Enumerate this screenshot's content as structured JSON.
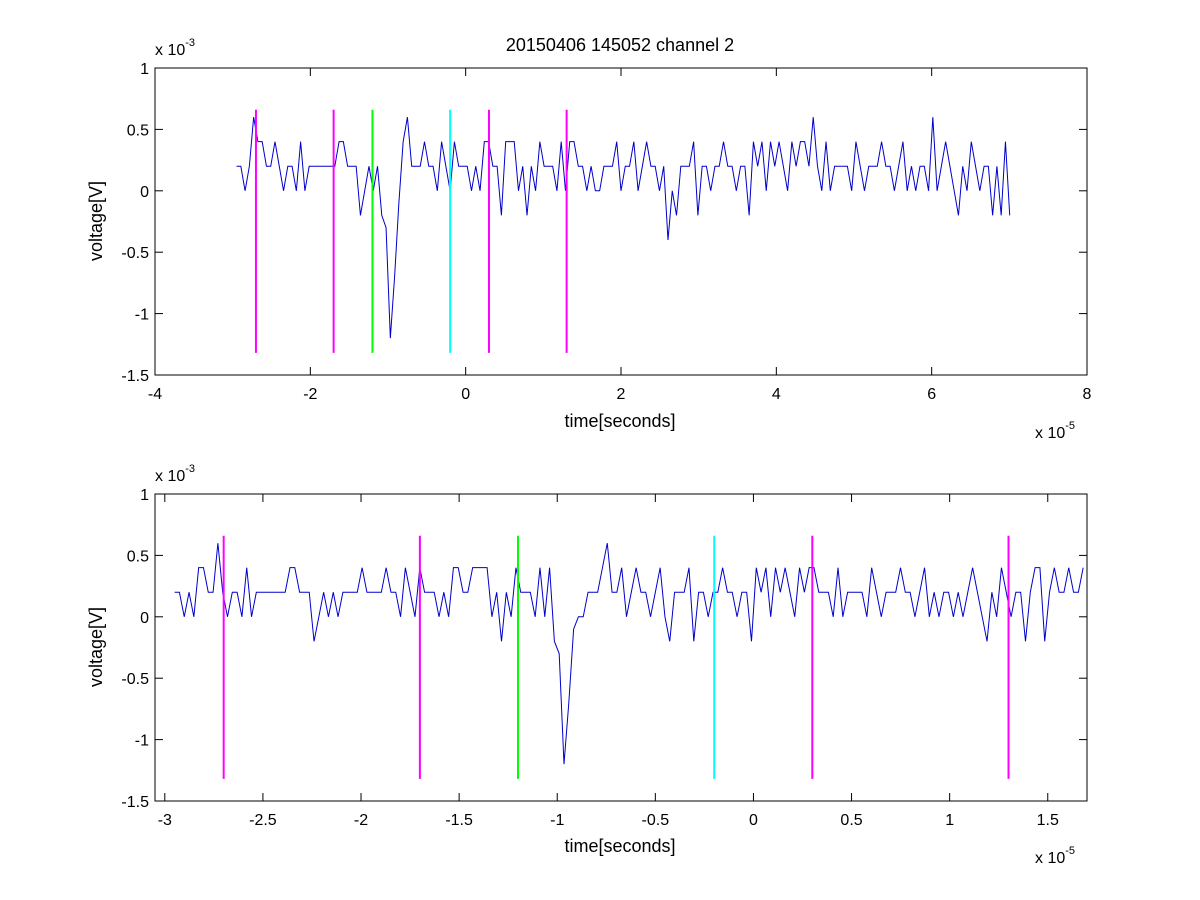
{
  "chart_data": [
    {
      "type": "line",
      "title": "20150406 145052 channel 2",
      "xlabel": "time[seconds]",
      "ylabel": "voltage[V]",
      "x_scale_label": "x 10",
      "x_scale_exp": "-5",
      "y_scale_label": "x 10",
      "y_scale_exp": "-3",
      "x_unit_scale": 1e-05,
      "y_unit_scale": 0.001,
      "xlim": [
        -4,
        8
      ],
      "ylim": [
        -1.5,
        1
      ],
      "xticks": [
        -4,
        -2,
        0,
        2,
        4,
        6,
        8
      ],
      "xtick_labels": [
        "-4",
        "-2",
        "0",
        "2",
        "4",
        "6",
        "8"
      ],
      "yticks": [
        -1.5,
        -1,
        -0.5,
        0,
        0.5,
        1
      ],
      "ytick_labels": [
        "-1.5",
        "-1",
        "-0.5",
        "0",
        "0.5",
        "1"
      ],
      "grid": false,
      "series": [
        {
          "color": "#0000cc",
          "x_range": [
            -2.95,
            7.05
          ],
          "noise_levels": [
            0,
            0.2,
            0.2,
            0.4,
            0.2,
            0,
            0.2,
            0.4
          ],
          "events": [
            {
              "x": -2.72,
              "y": 0.6
            },
            {
              "x": -0.97,
              "y": -1.2
            },
            {
              "x": -0.75,
              "y": 0.6
            },
            {
              "x": 2.6,
              "y": -0.4
            },
            {
              "x": 4.5,
              "y": 0.6
            },
            {
              "x": 6.0,
              "y": 0.6
            },
            {
              "x": 6.9,
              "y": -0.2
            }
          ]
        }
      ],
      "markers": [
        {
          "x": -2.7,
          "y": [
            -1.32,
            0.66
          ],
          "color": "#ff00ff"
        },
        {
          "x": -1.7,
          "y": [
            -1.32,
            0.66
          ],
          "color": "#ff00ff"
        },
        {
          "x": -1.2,
          "y": [
            -1.32,
            0.66
          ],
          "color": "#00ff00"
        },
        {
          "x": -0.2,
          "y": [
            -1.32,
            0.66
          ],
          "color": "#00ffff"
        },
        {
          "x": 0.3,
          "y": [
            -1.32,
            0.66
          ],
          "color": "#ff00ff"
        },
        {
          "x": 1.3,
          "y": [
            -1.32,
            0.66
          ],
          "color": "#ff00ff"
        }
      ]
    },
    {
      "type": "line",
      "title": "",
      "xlabel": "time[seconds]",
      "ylabel": "voltage[V]",
      "x_scale_label": "x 10",
      "x_scale_exp": "-5",
      "y_scale_label": "x 10",
      "y_scale_exp": "-3",
      "x_unit_scale": 1e-05,
      "y_unit_scale": 0.001,
      "xlim": [
        -3.05,
        1.7
      ],
      "ylim": [
        -1.5,
        1
      ],
      "xticks": [
        -3,
        -2.5,
        -2,
        -1.5,
        -1,
        -0.5,
        0,
        0.5,
        1,
        1.5
      ],
      "xtick_labels": [
        "-3",
        "-2.5",
        "-2",
        "-1.5",
        "-1",
        "-0.5",
        "0",
        "0.5",
        "1",
        "1.5"
      ],
      "yticks": [
        -1.5,
        -1,
        -0.5,
        0,
        0.5,
        1
      ],
      "ytick_labels": [
        "-1.5",
        "-1",
        "-0.5",
        "0",
        "0.5",
        "1"
      ],
      "grid": false,
      "series": [
        {
          "color": "#0000cc",
          "x_range": [
            -2.95,
            1.7
          ],
          "noise_levels": [
            0,
            0.2,
            0.2,
            0.4,
            0.2,
            0,
            0.2,
            0.4
          ],
          "events": [
            {
              "x": -2.72,
              "y": 0.6
            },
            {
              "x": -0.97,
              "y": -1.2
            },
            {
              "x": -0.75,
              "y": 0.6
            },
            {
              "x": -1.42,
              "y": 0.4
            }
          ]
        }
      ],
      "markers": [
        {
          "x": -2.7,
          "y": [
            -1.32,
            0.66
          ],
          "color": "#ff00ff"
        },
        {
          "x": -1.7,
          "y": [
            -1.32,
            0.66
          ],
          "color": "#ff00ff"
        },
        {
          "x": -1.2,
          "y": [
            -1.32,
            0.66
          ],
          "color": "#00ff00"
        },
        {
          "x": -0.2,
          "y": [
            -1.32,
            0.66
          ],
          "color": "#00ffff"
        },
        {
          "x": 0.3,
          "y": [
            -1.32,
            0.66
          ],
          "color": "#ff00ff"
        },
        {
          "x": 1.3,
          "y": [
            -1.32,
            0.66
          ],
          "color": "#ff00ff"
        }
      ]
    }
  ]
}
